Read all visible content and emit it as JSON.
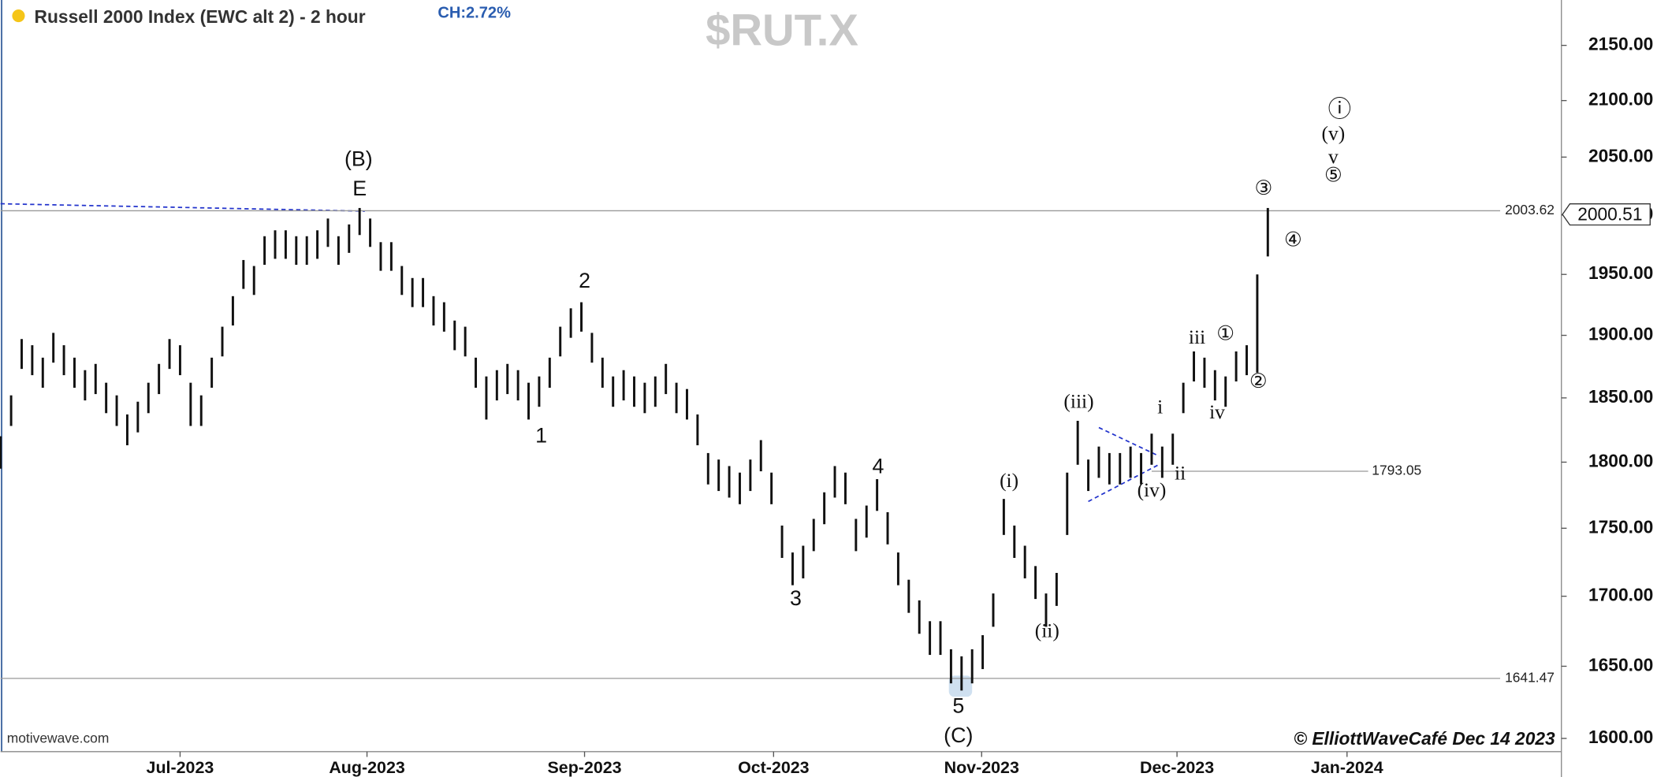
{
  "chart_data": {
    "type": "hl-bar",
    "title": "Russell 2000 Index (EWC alt 2) - 2 hour",
    "change": "CH:2.72%",
    "symbol": "$RUT.X",
    "source": "motivewave.com",
    "credit": "© ElliottWaveCafé Dec 14 2023",
    "log_scale": true,
    "color": "#111111",
    "xlim": [
      0,
      147.8
    ],
    "xticks": [
      {
        "value": 17,
        "label": "Jul-2023"
      },
      {
        "value": 34.7,
        "label": "Aug-2023"
      },
      {
        "value": 55.3,
        "label": "Sep-2023"
      },
      {
        "value": 73.2,
        "label": "Oct-2023"
      },
      {
        "value": 92.9,
        "label": "Nov-2023"
      },
      {
        "value": 111.4,
        "label": "Dec-2023"
      },
      {
        "value": 127.5,
        "label": "Jan-2024"
      }
    ],
    "ylim": [
      1591,
      2192
    ],
    "yticks": [
      {
        "value": 1600,
        "label": "1600.00"
      },
      {
        "value": 1650,
        "label": "1650.00"
      },
      {
        "value": 1700,
        "label": "1700.00"
      },
      {
        "value": 1750,
        "label": "1750.00"
      },
      {
        "value": 1800,
        "label": "1800.00"
      },
      {
        "value": 1850,
        "label": "1850.00"
      },
      {
        "value": 1900,
        "label": "1900.00"
      },
      {
        "value": 1950,
        "label": "1950.00"
      },
      {
        "value": 2000,
        "label": "2000.00"
      },
      {
        "value": 2050,
        "label": "2050.00"
      },
      {
        "value": 2100,
        "label": "2100.00"
      },
      {
        "value": 2150,
        "label": "2150.00"
      }
    ],
    "last_price": 2000.51,
    "levels": [
      2003.62,
      1793.05,
      1641.47
    ],
    "high": [
      1820,
      1852,
      1897,
      1892,
      1882,
      1902,
      1892,
      1882,
      1872,
      1877,
      1862,
      1852,
      1837,
      1847,
      1862,
      1877,
      1897,
      1892,
      1862,
      1852,
      1882,
      1907,
      1932,
      1962,
      1957,
      1982,
      1987,
      1987,
      1982,
      1982,
      1987,
      1997,
      1982,
      1992,
      2006,
      1997,
      1977,
      1977,
      1957,
      1947,
      1947,
      1932,
      1927,
      1912,
      1907,
      1882,
      1867,
      1872,
      1877,
      1872,
      1862,
      1867,
      1882,
      1907,
      1922,
      1927,
      1902,
      1882,
      1867,
      1872,
      1867,
      1862,
      1867,
      1877,
      1862,
      1857,
      1837,
      1807,
      1802,
      1797,
      1792,
      1802,
      1817,
      1792,
      1752,
      1732,
      1737,
      1757,
      1777,
      1797,
      1792,
      1757,
      1767,
      1787,
      1762,
      1732,
      1712,
      1697,
      1682,
      1682,
      1662,
      1657,
      1662,
      1672,
      1702,
      1772,
      1752,
      1737,
      1722,
      1702,
      1717,
      1792,
      1832,
      1802,
      1812,
      1807,
      1807,
      1812,
      1807,
      1822,
      1812,
      1822,
      1862,
      1887,
      1882,
      1872,
      1867,
      1887,
      1892,
      1950,
      2006
    ],
    "low": [
      1795,
      1828,
      1873,
      1868,
      1858,
      1878,
      1868,
      1858,
      1848,
      1853,
      1838,
      1828,
      1813,
      1823,
      1838,
      1853,
      1873,
      1868,
      1828,
      1828,
      1858,
      1883,
      1908,
      1938,
      1933,
      1958,
      1963,
      1963,
      1958,
      1958,
      1963,
      1973,
      1958,
      1968,
      1983,
      1973,
      1953,
      1953,
      1933,
      1923,
      1923,
      1908,
      1903,
      1888,
      1883,
      1858,
      1833,
      1848,
      1853,
      1848,
      1833,
      1843,
      1858,
      1883,
      1898,
      1903,
      1878,
      1858,
      1843,
      1848,
      1843,
      1838,
      1843,
      1853,
      1838,
      1833,
      1813,
      1783,
      1778,
      1773,
      1768,
      1778,
      1793,
      1768,
      1728,
      1708,
      1713,
      1733,
      1753,
      1773,
      1768,
      1733,
      1743,
      1763,
      1738,
      1708,
      1688,
      1673,
      1658,
      1658,
      1638,
      1633,
      1638,
      1648,
      1678,
      1745,
      1728,
      1713,
      1698,
      1678,
      1693,
      1745,
      1798,
      1778,
      1788,
      1783,
      1783,
      1788,
      1783,
      1798,
      1788,
      1798,
      1838,
      1863,
      1858,
      1848,
      1843,
      1863,
      1868,
      1870,
      1965
    ],
    "annotations": [
      "(B)",
      "E",
      "2",
      "1",
      "3",
      "4",
      "5",
      "(C)",
      "(i)",
      "(ii)",
      "(iii)",
      "(iv)",
      "i",
      "ii",
      "iii",
      "iv",
      "①",
      "②",
      "③",
      "④",
      "ⓘ",
      "(v)",
      "v",
      "⑤"
    ]
  }
}
